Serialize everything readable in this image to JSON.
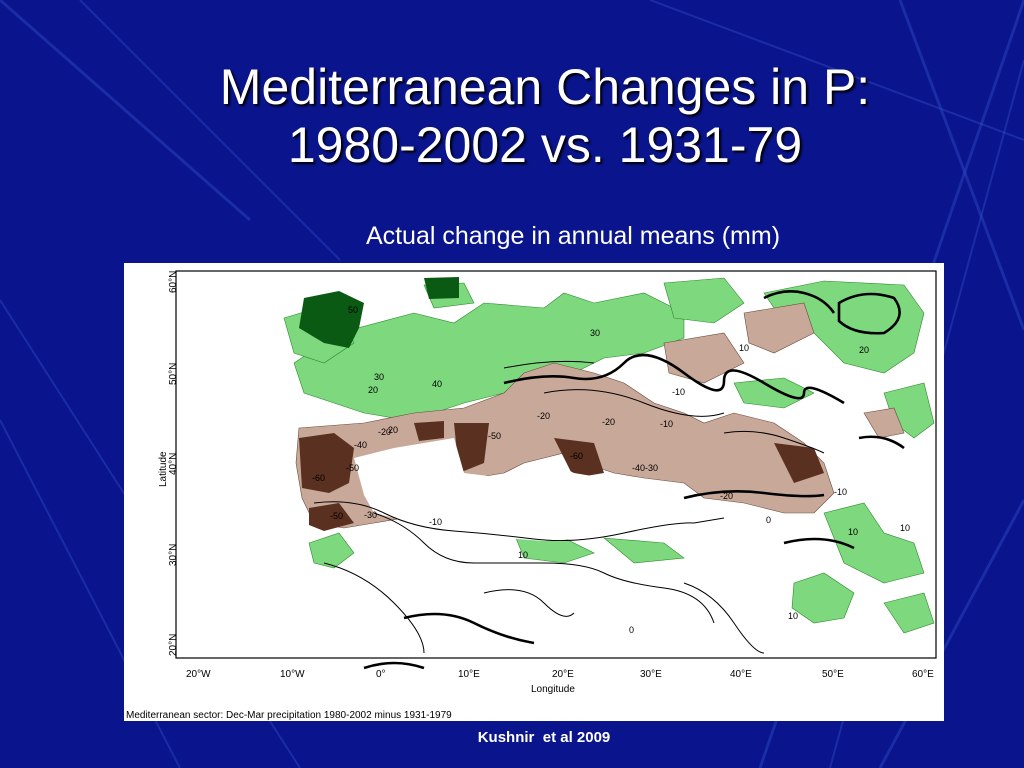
{
  "slide": {
    "title_line1": "Mediterranean Changes in P:",
    "title_line2": "1980-2002 vs. 1931-79",
    "subtitle": "Actual change in annual means (mm)",
    "credit": "Kushnir  et al 2009"
  },
  "map": {
    "caption": "Mediterranean sector: Dec-Mar precipitation 1980-2002 minus 1931-1979",
    "x_axis_label": "Longitude",
    "y_axis_label": "Latitude",
    "lon_ticks": [
      "20°W",
      "10°W",
      "0°",
      "10°E",
      "20°E",
      "30°E",
      "40°E",
      "50°E",
      "60°E"
    ],
    "lat_ticks": [
      "60°N",
      "50°N",
      "40°N",
      "30°N",
      "20°N"
    ],
    "contour_labels": {
      "c1": "50",
      "c2": "30",
      "c3": "40",
      "c4": "30",
      "c5": "20",
      "c6": "10",
      "c7": "20",
      "c8": "-10",
      "c9": "-20",
      "c10": "-40",
      "c11": "-50",
      "c12": "-60",
      "c13": "-50",
      "c14": "-30",
      "c15": "-10",
      "c16": "-20",
      "c17": "-10",
      "c18": "-40-30",
      "c19": "-20",
      "c20": "0",
      "c21": "-10",
      "c22": "10",
      "c23": "10",
      "c24": "10",
      "c25": "10",
      "c26": "-20",
      "c27": "20",
      "c28": "-50",
      "c29": "-60",
      "c30": "0"
    },
    "colors": {
      "positive": "#7ed87e",
      "positive_strong": "#0a5a14",
      "negative": "#c8a898",
      "negative_strong": "#5a3020"
    }
  }
}
